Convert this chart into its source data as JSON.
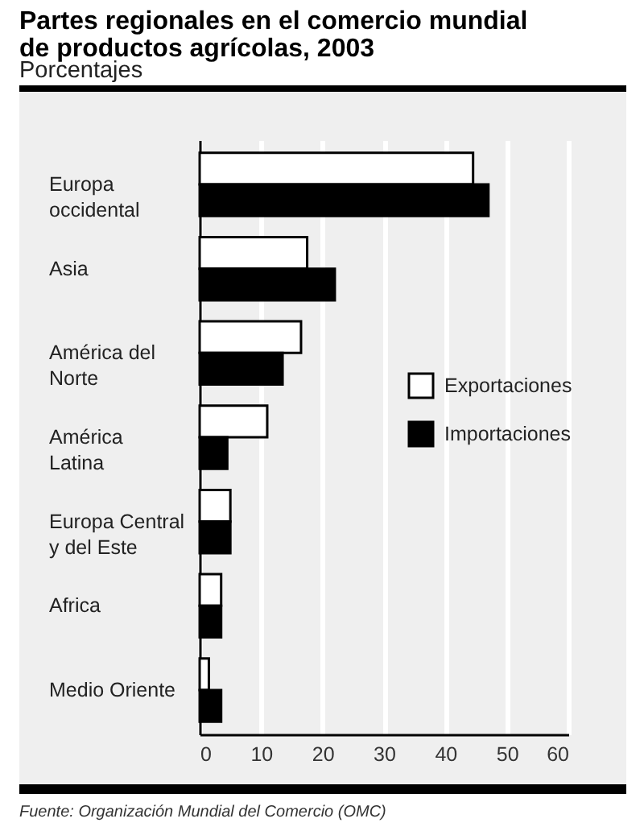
{
  "chart_data": {
    "type": "bar",
    "orientation": "horizontal",
    "title": "Partes regionales en el comercio mundial de productos agrícolas, 2003",
    "subtitle": "Porcentajes",
    "categories": [
      "Europa occidental",
      "Asia",
      "América del Norte",
      "América Latina",
      "Europa Central y del Este",
      "Africa",
      "Medio Oriente"
    ],
    "series": [
      {
        "name": "Exportaciones",
        "color": "#ffffff",
        "values": [
          44.5,
          17.5,
          16.5,
          11,
          5,
          3.5,
          1.5
        ]
      },
      {
        "name": "Importaciones",
        "color": "#000000",
        "values": [
          47,
          22,
          13.5,
          4.5,
          5,
          3.5,
          3.5
        ]
      }
    ],
    "xlim": [
      0,
      60
    ],
    "xticks": [
      0,
      10,
      20,
      30,
      40,
      50,
      60
    ],
    "grid": "x",
    "legend": "right",
    "annotations": [
      "Fuente: Organización Mundial del Comercio (OMC)"
    ]
  }
}
